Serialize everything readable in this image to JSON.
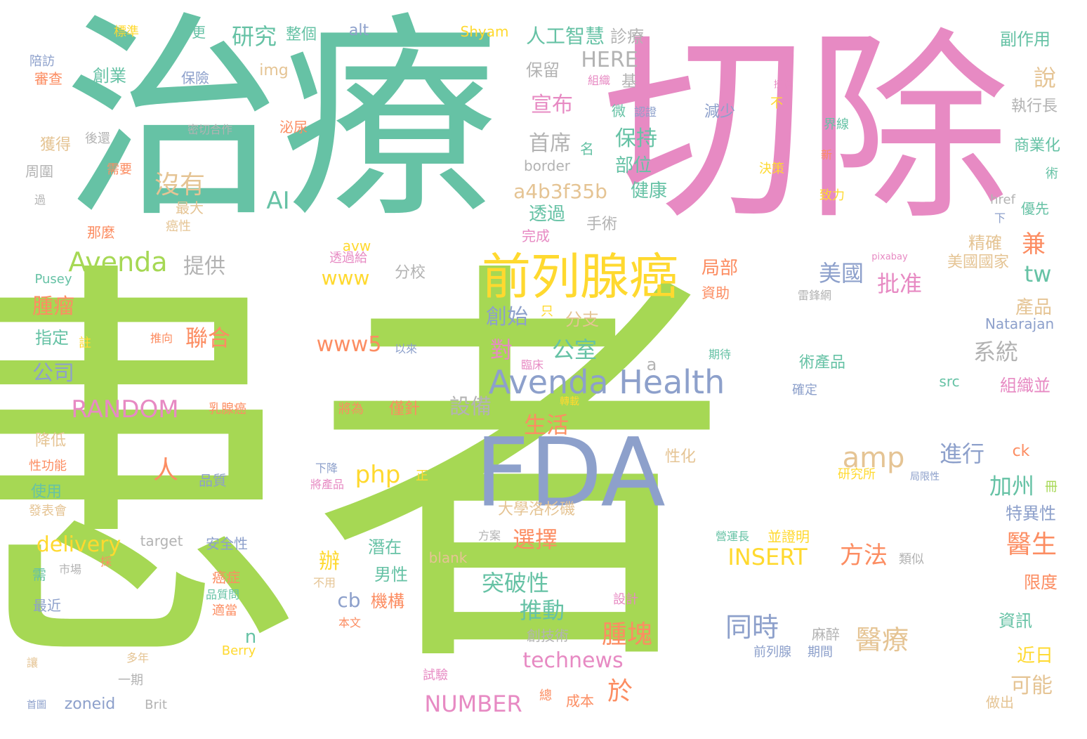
{
  "palette": {
    "green": "#a6d854",
    "teal": "#66c2a5",
    "pink": "#e78ac3",
    "blue": "#8da0cb",
    "yellow": "#ffd92f",
    "orange": "#fc8d62",
    "tan": "#e5c494",
    "gray": "#b3b3b3"
  },
  "words": [
    {
      "text": "患者",
      "color": "green"
    },
    {
      "text": "治療",
      "color": "teal"
    },
    {
      "text": "切除",
      "color": "pink"
    },
    {
      "text": "前列腺癌",
      "color": "yellow"
    },
    {
      "text": "FDA",
      "color": "blue"
    },
    {
      "text": "Avenda Health",
      "color": "blue"
    },
    {
      "text": "Avenda",
      "color": "green"
    },
    {
      "text": "a4b3f35b",
      "color": "tan"
    },
    {
      "text": "沒有",
      "color": "tan"
    },
    {
      "text": "研究",
      "color": "teal"
    },
    {
      "text": "人工智慧",
      "color": "teal"
    },
    {
      "text": "HERE",
      "color": "gray"
    },
    {
      "text": "宣布",
      "color": "pink"
    },
    {
      "text": "保持",
      "color": "teal"
    },
    {
      "text": "首席",
      "color": "gray"
    },
    {
      "text": "部位",
      "color": "teal"
    },
    {
      "text": "健康",
      "color": "teal"
    },
    {
      "text": "透過",
      "color": "teal"
    },
    {
      "text": "AI",
      "color": "teal"
    },
    {
      "text": "提供",
      "color": "gray"
    },
    {
      "text": "www",
      "color": "yellow"
    },
    {
      "text": "腫瘤",
      "color": "orange"
    },
    {
      "text": "聯合",
      "color": "orange"
    },
    {
      "text": "www5",
      "color": "orange"
    },
    {
      "text": "公司",
      "color": "blue"
    },
    {
      "text": "RANDOM",
      "color": "pink"
    },
    {
      "text": "設備",
      "color": "gray"
    },
    {
      "text": "生活",
      "color": "orange"
    },
    {
      "text": "php",
      "color": "yellow"
    },
    {
      "text": "amp",
      "color": "tan"
    },
    {
      "text": "進行",
      "color": "blue"
    },
    {
      "text": "加州",
      "color": "teal"
    },
    {
      "text": "醫生",
      "color": "orange"
    },
    {
      "text": "選擇",
      "color": "orange"
    },
    {
      "text": "INSERT",
      "color": "yellow"
    },
    {
      "text": "方法",
      "color": "orange"
    },
    {
      "text": "突破性",
      "color": "teal"
    },
    {
      "text": "推動",
      "color": "teal"
    },
    {
      "text": "腫塊",
      "color": "orange"
    },
    {
      "text": "同時",
      "color": "blue"
    },
    {
      "text": "醫療",
      "color": "tan"
    },
    {
      "text": "technews",
      "color": "pink"
    },
    {
      "text": "NUMBER",
      "color": "pink"
    },
    {
      "text": "於",
      "color": "orange"
    },
    {
      "text": "可能",
      "color": "tan"
    },
    {
      "text": "delivery",
      "color": "yellow"
    },
    {
      "text": "美國",
      "color": "blue"
    },
    {
      "text": "批准",
      "color": "pink"
    },
    {
      "text": "創始",
      "color": "blue"
    },
    {
      "text": "公室",
      "color": "teal"
    },
    {
      "text": "系統",
      "color": "gray"
    },
    {
      "text": "對",
      "color": "pink"
    },
    {
      "text": "人",
      "color": "orange"
    },
    {
      "text": "兼",
      "color": "orange"
    },
    {
      "text": "tw",
      "color": "teal"
    },
    {
      "text": "局部",
      "color": "orange"
    },
    {
      "text": "精確",
      "color": "tan"
    },
    {
      "text": "產品",
      "color": "tan"
    },
    {
      "text": "保留",
      "color": "gray"
    },
    {
      "text": "說",
      "color": "tan"
    },
    {
      "text": "副作用",
      "color": "teal"
    },
    {
      "text": "執行長",
      "color": "gray"
    },
    {
      "text": "商業化",
      "color": "teal"
    },
    {
      "text": "優先",
      "color": "teal"
    },
    {
      "text": "美國國家",
      "color": "tan"
    },
    {
      "text": "Natarajan",
      "color": "blue"
    },
    {
      "text": "組織並",
      "color": "pink"
    },
    {
      "text": "特異性",
      "color": "blue"
    },
    {
      "text": "限度",
      "color": "orange"
    },
    {
      "text": "資訊",
      "color": "teal"
    },
    {
      "text": "近日",
      "color": "yellow"
    },
    {
      "text": "做出",
      "color": "tan"
    },
    {
      "text": "診療",
      "color": "gray"
    },
    {
      "text": "整個",
      "color": "teal"
    },
    {
      "text": "alt",
      "color": "blue"
    },
    {
      "text": "Shyam",
      "color": "yellow"
    },
    {
      "text": "標準",
      "color": "yellow"
    },
    {
      "text": "更",
      "color": "teal"
    },
    {
      "text": "陪訪",
      "color": "blue"
    },
    {
      "text": "審查",
      "color": "orange"
    },
    {
      "text": "創業",
      "color": "teal"
    },
    {
      "text": "保險",
      "color": "blue"
    },
    {
      "text": "img",
      "color": "tan"
    },
    {
      "text": "獲得",
      "color": "tan"
    },
    {
      "text": "後還",
      "color": "gray"
    },
    {
      "text": "密切合作",
      "color": "gray"
    },
    {
      "text": "泌尿",
      "color": "orange"
    },
    {
      "text": "周圍",
      "color": "gray"
    },
    {
      "text": "過",
      "color": "gray"
    },
    {
      "text": "需要",
      "color": "orange"
    },
    {
      "text": "最大",
      "color": "tan"
    },
    {
      "text": "那麼",
      "color": "orange"
    },
    {
      "text": "癌性",
      "color": "tan"
    },
    {
      "text": "Pusey",
      "color": "teal"
    },
    {
      "text": "avw",
      "color": "yellow"
    },
    {
      "text": "透過給",
      "color": "pink"
    },
    {
      "text": "分校",
      "color": "gray"
    },
    {
      "text": "指定",
      "color": "teal"
    },
    {
      "text": "註",
      "color": "yellow"
    },
    {
      "text": "推向",
      "color": "orange"
    },
    {
      "text": "以來",
      "color": "blue"
    },
    {
      "text": "乳腺癌",
      "color": "orange"
    },
    {
      "text": "將為",
      "color": "orange"
    },
    {
      "text": "僅針",
      "color": "orange"
    },
    {
      "text": "降低",
      "color": "tan"
    },
    {
      "text": "性功能",
      "color": "orange"
    },
    {
      "text": "使用",
      "color": "teal"
    },
    {
      "text": "發表會",
      "color": "tan"
    },
    {
      "text": "品質",
      "color": "blue"
    },
    {
      "text": "下降",
      "color": "blue"
    },
    {
      "text": "將產品",
      "color": "pink"
    },
    {
      "text": "正",
      "color": "yellow"
    },
    {
      "text": "target",
      "color": "gray"
    },
    {
      "text": "安全性",
      "color": "blue"
    },
    {
      "text": "需",
      "color": "teal"
    },
    {
      "text": "市場",
      "color": "gray"
    },
    {
      "text": "採",
      "color": "orange"
    },
    {
      "text": "最近",
      "color": "blue"
    },
    {
      "text": "癌症",
      "color": "orange"
    },
    {
      "text": "品質問",
      "color": "teal"
    },
    {
      "text": "適當",
      "color": "orange"
    },
    {
      "text": "本文",
      "color": "orange"
    },
    {
      "text": "不用",
      "color": "tan"
    },
    {
      "text": "潛在",
      "color": "teal"
    },
    {
      "text": "男性",
      "color": "teal"
    },
    {
      "text": "機構",
      "color": "orange"
    },
    {
      "text": "cb",
      "color": "blue"
    },
    {
      "text": "辦",
      "color": "yellow"
    },
    {
      "text": "blank",
      "color": "tan"
    },
    {
      "text": "n",
      "color": "teal"
    },
    {
      "text": "Berry",
      "color": "yellow"
    },
    {
      "text": "多年",
      "color": "tan"
    },
    {
      "text": "讓",
      "color": "tan"
    },
    {
      "text": "一期",
      "color": "gray"
    },
    {
      "text": "zoneid",
      "color": "blue"
    },
    {
      "text": "首圖",
      "color": "blue"
    },
    {
      "text": "Brit",
      "color": "gray"
    },
    {
      "text": "試驗",
      "color": "pink"
    },
    {
      "text": "總",
      "color": "orange"
    },
    {
      "text": "成本",
      "color": "orange"
    },
    {
      "text": "設計",
      "color": "pink"
    },
    {
      "text": "創技術",
      "color": "gray"
    },
    {
      "text": "麻醉",
      "color": "gray"
    },
    {
      "text": "前列腺",
      "color": "blue"
    },
    {
      "text": "期間",
      "color": "blue"
    },
    {
      "text": "營運長",
      "color": "teal"
    },
    {
      "text": "並證明",
      "color": "yellow"
    },
    {
      "text": "類似",
      "color": "gray"
    },
    {
      "text": "研究所",
      "color": "yellow"
    },
    {
      "text": "局限性",
      "color": "blue"
    },
    {
      "text": "冊",
      "color": "green"
    },
    {
      "text": "ck",
      "color": "orange"
    },
    {
      "text": "性化",
      "color": "tan"
    },
    {
      "text": "方案",
      "color": "gray"
    },
    {
      "text": "大學洛杉磯",
      "color": "tan"
    },
    {
      "text": "分支",
      "color": "tan"
    },
    {
      "text": "只",
      "color": "yellow"
    },
    {
      "text": "臨床",
      "color": "pink"
    },
    {
      "text": "期待",
      "color": "teal"
    },
    {
      "text": "術產品",
      "color": "teal"
    },
    {
      "text": "確定",
      "color": "blue"
    },
    {
      "text": "src",
      "color": "teal"
    },
    {
      "text": "轉載",
      "color": "yellow"
    },
    {
      "text": "雷鋒網",
      "color": "gray"
    },
    {
      "text": "pixabay",
      "color": "pink"
    },
    {
      "text": "資助",
      "color": "orange"
    },
    {
      "text": "a",
      "color": "gray"
    },
    {
      "text": "手術",
      "color": "gray"
    },
    {
      "text": "完成",
      "color": "pink"
    },
    {
      "text": "border",
      "color": "gray"
    },
    {
      "text": "名",
      "color": "teal"
    },
    {
      "text": "基",
      "color": "gray"
    },
    {
      "text": "組織",
      "color": "pink"
    },
    {
      "text": "微",
      "color": "teal"
    },
    {
      "text": "認證",
      "color": "blue"
    },
    {
      "text": "減少",
      "color": "blue"
    },
    {
      "text": "授權",
      "color": "pink"
    },
    {
      "text": "不",
      "color": "yellow"
    },
    {
      "text": "界線",
      "color": "teal"
    },
    {
      "text": "新",
      "color": "orange"
    },
    {
      "text": "決策",
      "color": "yellow"
    },
    {
      "text": "致力",
      "color": "yellow"
    },
    {
      "text": "href",
      "color": "gray"
    },
    {
      "text": "下",
      "color": "blue"
    },
    {
      "text": "術",
      "color": "teal"
    }
  ]
}
